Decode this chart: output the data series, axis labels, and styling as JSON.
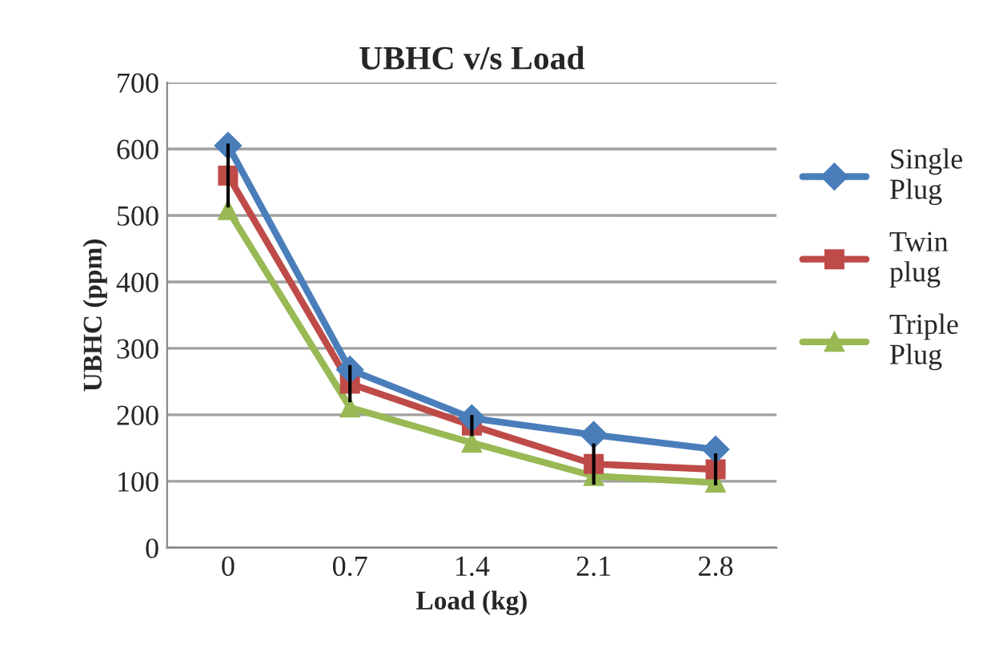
{
  "chart_data": {
    "type": "line",
    "title": "UBHC v/s Load",
    "xlabel": "Load (kg)",
    "ylabel": "UBHC (ppm)",
    "categories": [
      "0",
      "0.7",
      "1.4",
      "2.1",
      "2.8"
    ],
    "series": [
      {
        "name": "Single Plug",
        "color": "#4a7ebb",
        "marker": "diamond",
        "values": [
          605,
          268,
          195,
          170,
          148
        ]
      },
      {
        "name": "Twin plug",
        "color": "#be4b48",
        "marker": "square",
        "values": [
          560,
          247,
          184,
          126,
          118
        ],
        "errors": [
          48,
          28,
          16,
          31,
          24
        ]
      },
      {
        "name": "Triple Plug",
        "color": "#98b954",
        "marker": "triangle",
        "values": [
          508,
          211,
          158,
          108,
          98
        ]
      }
    ],
    "ylim": [
      0,
      700
    ],
    "yticks": [
      0,
      100,
      200,
      300,
      400,
      500,
      600,
      700
    ],
    "grid": "y",
    "legend": "right",
    "line_style": "solid"
  }
}
